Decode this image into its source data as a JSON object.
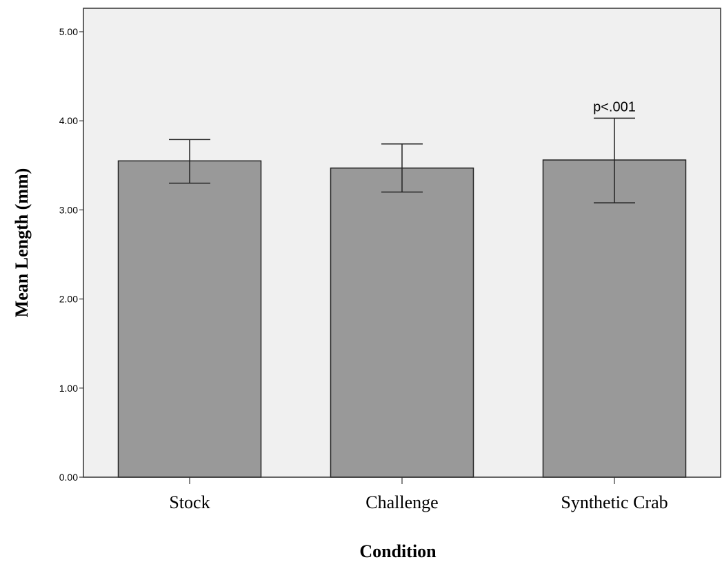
{
  "chart_data": {
    "type": "bar",
    "title": "",
    "xlabel": "Condition",
    "ylabel": "Mean Length (mm)",
    "categories": [
      "Stock",
      "Challenge",
      "Synthetic Crab"
    ],
    "values": [
      3.55,
      3.47,
      3.56
    ],
    "error_low": [
      3.3,
      3.2,
      3.08
    ],
    "error_high": [
      3.79,
      3.74,
      4.03
    ],
    "ylim": [
      0,
      5.3
    ],
    "yticks": [
      "0.00",
      "1.00",
      "2.00",
      "3.00",
      "4.00",
      "5.00"
    ],
    "annotations": [
      {
        "category": "Synthetic Crab",
        "text": "p<.001"
      }
    ],
    "grid": false,
    "legend": "none",
    "colors": {
      "bar": "#999999",
      "bar_edge": "#222222",
      "plot_bg": "#f0f0f0",
      "axis": "#333333"
    }
  }
}
